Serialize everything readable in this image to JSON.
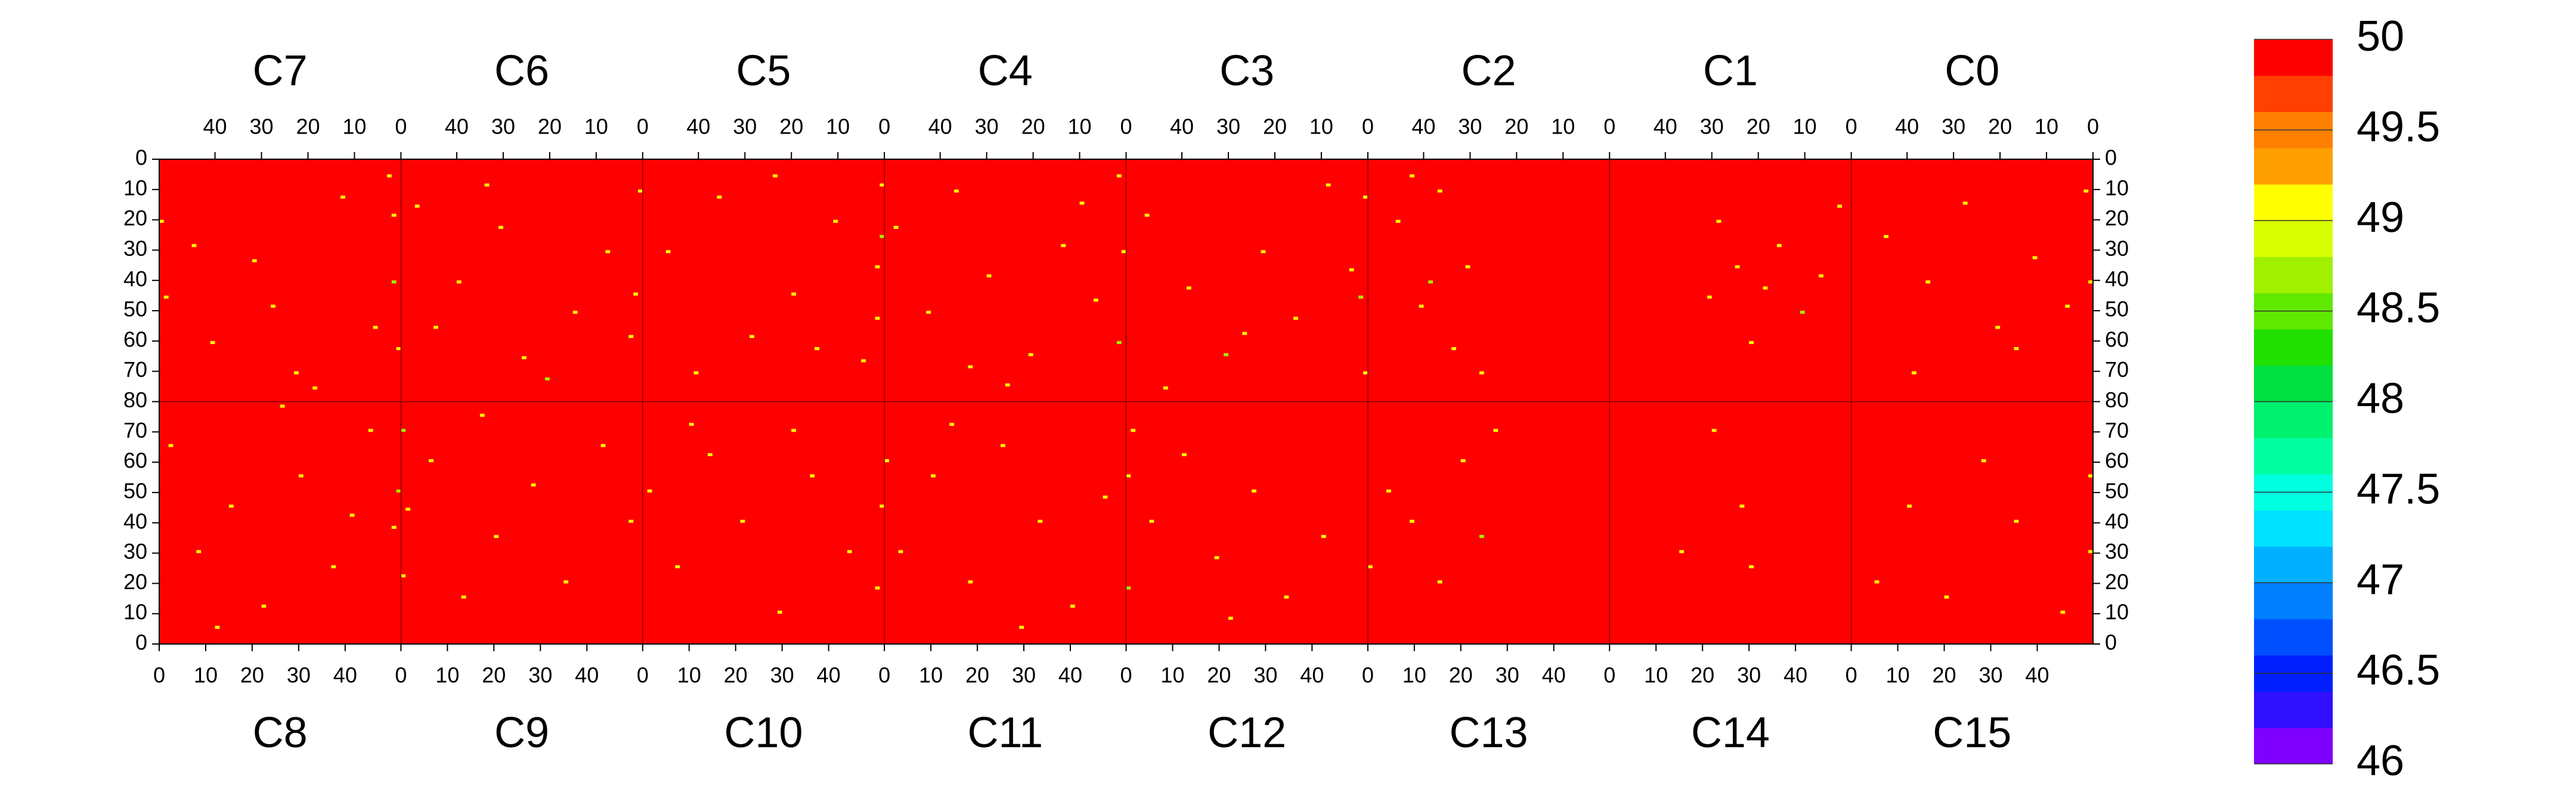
{
  "chart_data": {
    "type": "heatmap",
    "top_chips": [
      "C7",
      "C6",
      "C5",
      "C4",
      "C3",
      "C2",
      "C1",
      "C0"
    ],
    "bottom_chips": [
      "C8",
      "C9",
      "C10",
      "C11",
      "C12",
      "C13",
      "C14",
      "C15"
    ],
    "xlim": [
      0,
      52
    ],
    "top_xticks": [
      40,
      30,
      20,
      10,
      0
    ],
    "bottom_xticks": [
      0,
      10,
      20,
      30,
      40
    ],
    "ylim": [
      0,
      80
    ],
    "yticks": [
      0,
      10,
      20,
      30,
      40,
      50,
      60,
      70,
      80
    ],
    "zlim": [
      46,
      50
    ],
    "zticks": [
      46,
      46.5,
      47,
      47.5,
      48,
      48.5,
      49,
      49.5,
      50
    ],
    "colors": [
      "#7f00ff",
      "#3010ff",
      "#0020ff",
      "#0050ff",
      "#0080ff",
      "#00b0ff",
      "#00e0ff",
      "#00ffe0",
      "#00ffa0",
      "#00f070",
      "#00e040",
      "#20e000",
      "#60e800",
      "#a0f000",
      "#d8ff00",
      "#ffff00",
      "#ffa000",
      "#ff8000",
      "#ff4000",
      "#ff0000"
    ],
    "fill_value": 50,
    "panels": [
      {
        "x": [
          51,
          50,
          40,
          31,
          22,
          12,
          5,
          1,
          1,
          0,
          2,
          27,
          44,
          18
        ],
        "y": [
          20,
          45,
          60,
          33,
          70,
          12,
          55,
          18,
          40,
          62,
          5,
          48,
          28,
          75
        ],
        "values": [
          49.1,
          49.1,
          49.1,
          49.1,
          49.1,
          49.1,
          49.1,
          49.1,
          48.7,
          49.1,
          49.1,
          49.1,
          49.1,
          49.1
        ]
      },
      {
        "x": [
          48,
          39,
          30,
          25,
          14,
          7,
          2,
          0,
          1,
          33,
          20,
          44
        ],
        "y": [
          15,
          40,
          22,
          65,
          50,
          30,
          58,
          10,
          44,
          8,
          72,
          55
        ],
        "values": [
          49.1,
          49.1,
          49.1,
          49.1,
          49.1,
          49.1,
          49.1,
          49.1,
          49.1,
          49.1,
          48.7,
          49.1
        ]
      },
      {
        "x": [
          46,
          35,
          28,
          19,
          10,
          4,
          1,
          0,
          0,
          1,
          23,
          40,
          14
        ],
        "y": [
          30,
          12,
          58,
          44,
          20,
          66,
          35,
          8,
          25,
          52,
          5,
          70,
          62
        ],
        "values": [
          49.1,
          49.1,
          49.1,
          49.1,
          49.1,
          49.1,
          49.1,
          49.1,
          48.7,
          49.1,
          49.1,
          49.1,
          49.1
        ]
      },
      {
        "x": [
          49,
          42,
          36,
          29,
          20,
          13,
          6,
          1,
          0,
          1,
          25,
          9,
          33
        ],
        "y": [
          22,
          50,
          10,
          38,
          64,
          28,
          46,
          5,
          30,
          60,
          74,
          14,
          68
        ],
        "values": [
          49.1,
          49.1,
          49.1,
          49.1,
          49.1,
          49.1,
          49.1,
          49.1,
          49.1,
          48.7,
          49.1,
          49.1,
          49.1
        ]
      },
      {
        "x": [
          47,
          38,
          30,
          22,
          15,
          8,
          3,
          0,
          1,
          0,
          26,
          43
        ],
        "y": [
          18,
          42,
          64,
          30,
          52,
          8,
          36,
          12,
          45,
          70,
          57,
          75
        ],
        "values": [
          49.1,
          49.1,
          48.7,
          49.1,
          49.1,
          49.1,
          49.1,
          49.1,
          48.7,
          49.1,
          49.1,
          49.1
        ]
      },
      {
        "x": [
          45,
          40,
          36,
          33,
          30,
          27,
          42,
          38
        ],
        "y": [
          20,
          48,
          10,
          62,
          35,
          70,
          5,
          40
        ],
        "values": [
          49.1,
          49.1,
          49.1,
          49.1,
          49.1,
          49.1,
          49.1,
          48.7
        ]
      },
      {
        "x": [
          28,
          24,
          18,
          15,
          10,
          6,
          2,
          30,
          21
        ],
        "y": [
          20,
          35,
          42,
          28,
          50,
          38,
          15,
          45,
          60
        ],
        "values": [
          49.1,
          49.1,
          49.1,
          49.1,
          48.7,
          49.1,
          49.1,
          49.1,
          49.1
        ]
      },
      {
        "x": [
          44,
          35,
          27,
          20,
          12,
          5,
          1,
          0,
          38,
          16
        ],
        "y": [
          25,
          40,
          14,
          55,
          32,
          48,
          10,
          40,
          70,
          62
        ],
        "values": [
          49.1,
          49.1,
          49.1,
          49.1,
          49.1,
          49.1,
          49.1,
          49.1,
          49.1,
          49.1
        ]
      },
      {
        "x": [
          2,
          8,
          15,
          22,
          30,
          37,
          45,
          50,
          51,
          12,
          26,
          41
        ],
        "y": [
          65,
          30,
          45,
          12,
          55,
          25,
          70,
          38,
          50,
          5,
          78,
          42
        ],
        "values": [
          49.1,
          49.1,
          49.1,
          49.1,
          49.1,
          49.1,
          49.1,
          49.1,
          48.7,
          49.1,
          49.1,
          49.1
        ]
      },
      {
        "x": [
          0,
          1,
          6,
          13,
          20,
          28,
          35,
          43,
          49,
          0,
          17
        ],
        "y": [
          22,
          44,
          60,
          15,
          35,
          52,
          20,
          65,
          40,
          70,
          75
        ],
        "values": [
          49.1,
          49.1,
          49.1,
          49.1,
          49.1,
          49.1,
          49.1,
          49.1,
          49.1,
          48.7,
          49.1
        ]
      },
      {
        "x": [
          1,
          7,
          14,
          21,
          29,
          36,
          44,
          50,
          51,
          10,
          32
        ],
        "y": [
          50,
          25,
          62,
          40,
          10,
          55,
          30,
          18,
          45,
          72,
          70
        ],
        "values": [
          49.1,
          49.1,
          49.1,
          49.1,
          49.1,
          49.1,
          49.1,
          49.1,
          49.1,
          49.1,
          49.1
        ]
      },
      {
        "x": [
          3,
          10,
          18,
          25,
          33,
          40,
          47,
          0,
          14,
          29
        ],
        "y": [
          30,
          55,
          20,
          65,
          40,
          12,
          48,
          60,
          72,
          5
        ],
        "values": [
          49.1,
          49.1,
          49.1,
          49.1,
          49.1,
          49.1,
          49.1,
          49.1,
          49.1,
          49.1
        ]
      },
      {
        "x": [
          0,
          5,
          12,
          19,
          27,
          34,
          42,
          1,
          22,
          0
        ],
        "y": [
          18,
          40,
          62,
          28,
          50,
          15,
          35,
          70,
          8,
          55
        ],
        "values": [
          48.7,
          49.1,
          49.1,
          49.1,
          49.1,
          49.1,
          49.1,
          49.1,
          49.1,
          49.1
        ]
      },
      {
        "x": [
          0,
          4,
          9,
          15,
          20,
          24,
          27
        ],
        "y": [
          25,
          50,
          40,
          20,
          60,
          35,
          70
        ],
        "values": [
          49.1,
          49.1,
          49.1,
          49.1,
          49.1,
          48.7,
          49.1
        ]
      },
      {
        "x": [
          15,
          22,
          30,
          28
        ],
        "y": [
          30,
          70,
          25,
          45
        ],
        "values": [
          49.1,
          49.1,
          49.1,
          49.1
        ]
      },
      {
        "x": [
          5,
          12,
          20,
          28,
          35,
          45,
          51,
          51
        ],
        "y": [
          20,
          45,
          15,
          60,
          40,
          10,
          55,
          30
        ],
        "values": [
          49.1,
          49.1,
          49.1,
          49.1,
          49.1,
          49.1,
          49.1,
          49.1
        ]
      }
    ]
  }
}
